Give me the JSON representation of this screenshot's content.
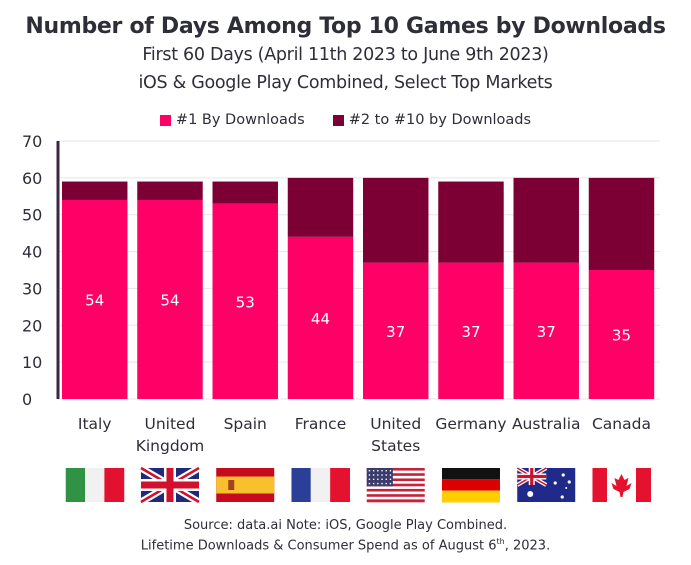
{
  "header": {
    "title": "Number of Days Among Top 10 Games by Downloads",
    "subtitle_1": "First 60 Days (April 11th 2023 to June 9th 2023)",
    "subtitle_2": "iOS & Google Play Combined, Select Top Markets"
  },
  "footer": {
    "line_1": "Source: data.ai Note: iOS, Google Play Combined.",
    "line_2_pre": "Lifetime Downloads & Consumer Spend as of August 6",
    "line_2_sup": "th",
    "line_2_post": ", 2023."
  },
  "colors": {
    "top1": "#ff0066",
    "top2to10": "#7c0033",
    "axis": "#3a2744",
    "grid": "#e6e6e6"
  },
  "flags": [
    "italy-flag",
    "uk-flag",
    "spain-flag",
    "france-flag",
    "usa-flag",
    "germany-flag",
    "australia-flag",
    "canada-flag"
  ],
  "chart_data": {
    "type": "bar",
    "stacked": true,
    "title": "Number of Days Among Top 10 Games by Downloads",
    "subtitle": "First 60 Days (April 11th 2023 to June 9th 2023) — iOS & Google Play Combined, Select Top Markets",
    "categories": [
      "Italy",
      "United Kingdom",
      "Spain",
      "France",
      "United States",
      "Germany",
      "Australia",
      "Canada"
    ],
    "category_label_lines": [
      [
        "Italy"
      ],
      [
        "United",
        "Kingdom"
      ],
      [
        "Spain"
      ],
      [
        "France"
      ],
      [
        "United",
        "States"
      ],
      [
        "Germany"
      ],
      [
        "Australia"
      ],
      [
        "Canada"
      ]
    ],
    "series": [
      {
        "name": "#1 By Downloads",
        "values": [
          54,
          54,
          53,
          44,
          37,
          37,
          37,
          35
        ],
        "color": "#ff0066",
        "data_labels": true
      },
      {
        "name": "#2 to #10 by Downloads",
        "values": [
          5,
          5,
          6,
          16,
          23,
          22,
          23,
          25
        ],
        "color": "#7c0033",
        "data_labels": false
      }
    ],
    "xlabel": "",
    "ylabel": "",
    "ylim": [
      0,
      70
    ],
    "yticks": [
      0,
      10,
      20,
      30,
      40,
      50,
      60,
      70
    ],
    "grid": true,
    "legend_position": "top-center"
  }
}
